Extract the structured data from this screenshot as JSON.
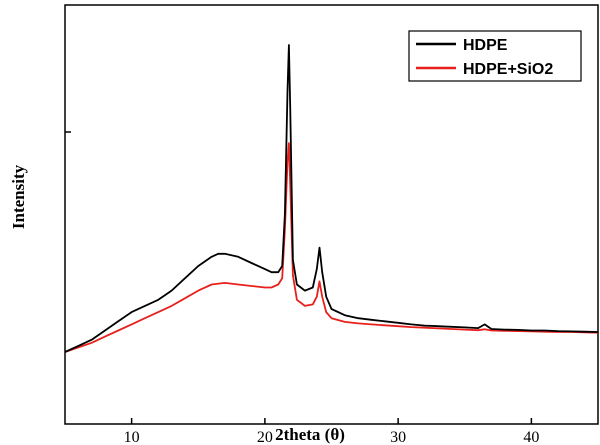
{
  "chart_data": {
    "type": "line",
    "title": "",
    "xlabel": "2theta (θ)",
    "ylabel": "Intensity",
    "xlim": [
      5,
      45
    ],
    "ylim": [
      0,
      100
    ],
    "x_ticks": [
      10,
      20,
      30,
      40
    ],
    "y_tick_labels_shown": false,
    "grid": false,
    "legend_position": "top-right",
    "series": [
      {
        "name": "HDPE",
        "color": "#000000",
        "points": [
          [
            5,
            0
          ],
          [
            6,
            2
          ],
          [
            7,
            4
          ],
          [
            8,
            7
          ],
          [
            9,
            10
          ],
          [
            10,
            13
          ],
          [
            11,
            15
          ],
          [
            12,
            17
          ],
          [
            13,
            20
          ],
          [
            14,
            24
          ],
          [
            15,
            28
          ],
          [
            16,
            31
          ],
          [
            16.5,
            32
          ],
          [
            17,
            32
          ],
          [
            18,
            31
          ],
          [
            19,
            29
          ],
          [
            20,
            27
          ],
          [
            20.5,
            26
          ],
          [
            21,
            26
          ],
          [
            21.3,
            28
          ],
          [
            21.5,
            45
          ],
          [
            21.7,
            85
          ],
          [
            21.8,
            100
          ],
          [
            21.9,
            80
          ],
          [
            22.1,
            30
          ],
          [
            22.4,
            22
          ],
          [
            23,
            20
          ],
          [
            23.6,
            21
          ],
          [
            23.9,
            27
          ],
          [
            24.1,
            34
          ],
          [
            24.3,
            26
          ],
          [
            24.6,
            18
          ],
          [
            25,
            14
          ],
          [
            26,
            12
          ],
          [
            27,
            11
          ],
          [
            28,
            10.5
          ],
          [
            29,
            10
          ],
          [
            30,
            9.5
          ],
          [
            31,
            9
          ],
          [
            32,
            8.6
          ],
          [
            33,
            8.4
          ],
          [
            34,
            8.2
          ],
          [
            35,
            8
          ],
          [
            36,
            7.8
          ],
          [
            36.5,
            9
          ],
          [
            37,
            7.5
          ],
          [
            38,
            7.3
          ],
          [
            39,
            7.2
          ],
          [
            40,
            7
          ],
          [
            41,
            7
          ],
          [
            42,
            6.8
          ],
          [
            43,
            6.7
          ],
          [
            44,
            6.6
          ],
          [
            45,
            6.5
          ]
        ]
      },
      {
        "name": "HDPE+SiO2",
        "color": "#e8201c",
        "points": [
          [
            5,
            0
          ],
          [
            6,
            1.5
          ],
          [
            7,
            3
          ],
          [
            8,
            5
          ],
          [
            9,
            7
          ],
          [
            10,
            9
          ],
          [
            11,
            11
          ],
          [
            12,
            13
          ],
          [
            13,
            15
          ],
          [
            14,
            17.5
          ],
          [
            15,
            20
          ],
          [
            16,
            22
          ],
          [
            17,
            22.5
          ],
          [
            18,
            22
          ],
          [
            19,
            21.5
          ],
          [
            20,
            21
          ],
          [
            20.5,
            21
          ],
          [
            21,
            22
          ],
          [
            21.3,
            24
          ],
          [
            21.5,
            40
          ],
          [
            21.7,
            62
          ],
          [
            21.8,
            68
          ],
          [
            21.9,
            55
          ],
          [
            22.1,
            25
          ],
          [
            22.4,
            17
          ],
          [
            23,
            15
          ],
          [
            23.6,
            15.5
          ],
          [
            23.9,
            18
          ],
          [
            24.1,
            23
          ],
          [
            24.3,
            18
          ],
          [
            24.6,
            13
          ],
          [
            25,
            11
          ],
          [
            26,
            9.8
          ],
          [
            27,
            9.3
          ],
          [
            28,
            9
          ],
          [
            29,
            8.7
          ],
          [
            30,
            8.4
          ],
          [
            31,
            8.1
          ],
          [
            32,
            7.9
          ],
          [
            33,
            7.7
          ],
          [
            34,
            7.5
          ],
          [
            35,
            7.3
          ],
          [
            36,
            7.1
          ],
          [
            36.5,
            7.4
          ],
          [
            37,
            7
          ],
          [
            38,
            6.9
          ],
          [
            39,
            6.8
          ],
          [
            40,
            6.7
          ],
          [
            41,
            6.6
          ],
          [
            42,
            6.5
          ],
          [
            43,
            6.5
          ],
          [
            44,
            6.4
          ],
          [
            45,
            6.3
          ]
        ]
      }
    ]
  }
}
